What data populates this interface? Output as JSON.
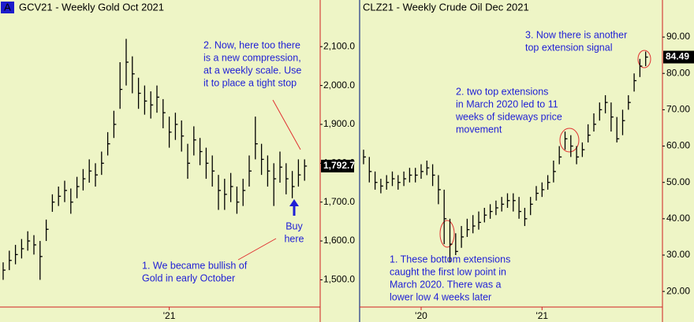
{
  "chart_data": [
    {
      "type": "ohlc",
      "badge": "A",
      "title": "GCV21 - Weekly  Gold Oct 2021",
      "high": [
        1545,
        1575,
        1590,
        1605,
        1625,
        1615,
        1600,
        1655,
        1720,
        1740,
        1755,
        1735,
        1765,
        1785,
        1810,
        1800,
        1830,
        1880,
        1935,
        2060,
        2120,
        2075,
        2020,
        2000,
        1985,
        2000,
        1965,
        1920,
        1930,
        1910,
        1850,
        1895,
        1865,
        1840,
        1820,
        1770,
        1760,
        1775,
        1740,
        1760,
        1820,
        1920,
        1850,
        1820,
        1800,
        1830,
        1800,
        1780,
        1810,
        1810
      ],
      "low": [
        1500,
        1525,
        1540,
        1555,
        1575,
        1565,
        1500,
        1600,
        1675,
        1690,
        1700,
        1670,
        1710,
        1730,
        1750,
        1740,
        1770,
        1820,
        1865,
        1940,
        2000,
        1980,
        1940,
        1925,
        1915,
        1930,
        1890,
        1840,
        1860,
        1830,
        1760,
        1820,
        1795,
        1760,
        1740,
        1680,
        1680,
        1700,
        1670,
        1690,
        1740,
        1810,
        1770,
        1740,
        1690,
        1750,
        1720,
        1710,
        1740,
        1755
      ],
      "close": [
        1525,
        1550,
        1565,
        1580,
        1600,
        1590,
        1560,
        1630,
        1700,
        1715,
        1730,
        1700,
        1740,
        1760,
        1780,
        1770,
        1800,
        1850,
        1900,
        1990,
        2060,
        2030,
        1980,
        1960,
        1950,
        1970,
        1930,
        1880,
        1900,
        1870,
        1800,
        1860,
        1830,
        1800,
        1780,
        1730,
        1720,
        1740,
        1700,
        1730,
        1780,
        1850,
        1810,
        1780,
        1760,
        1790,
        1760,
        1740,
        1770,
        1792.7
      ],
      "last_label": "1,792.7",
      "ylim": [
        1430,
        2220
      ],
      "yticks": [
        {
          "value": 1500,
          "label": "1,500.0"
        },
        {
          "value": 1600,
          "label": "1,600.0"
        },
        {
          "value": 1700,
          "label": "1,700.0"
        },
        {
          "value": 1800,
          "label": "1,800.0"
        },
        {
          "value": 1900,
          "label": "1,900.0"
        },
        {
          "value": 2000,
          "label": "2,000.0"
        },
        {
          "value": 2100,
          "label": "2,100.0"
        }
      ],
      "xticks": [
        {
          "value": 27,
          "label": "'21"
        }
      ],
      "color": "#000000",
      "annotations": [
        [
          "2. Now, here too there",
          "is a new compression,",
          "at a weekly scale. Use",
          "it to place a tight stop"
        ],
        [
          "Buy",
          "here"
        ],
        [
          "1. We became bullish of",
          "Gold in early October"
        ]
      ]
    },
    {
      "type": "ohlc",
      "title": "CLZ21 - Weekly  Crude Oil Dec 2021",
      "high": [
        59,
        57,
        53,
        51,
        52,
        53,
        52,
        53,
        54,
        54,
        55,
        56,
        55,
        52,
        48,
        40,
        36,
        38,
        40,
        41,
        42,
        43,
        44,
        45,
        46,
        47,
        47,
        46,
        43,
        46,
        49,
        50,
        52,
        56,
        60,
        64,
        63,
        60,
        61,
        66,
        69,
        72,
        74,
        72,
        68,
        70,
        74,
        80,
        84,
        86
      ],
      "low": [
        55,
        50,
        48,
        47,
        48,
        49,
        48,
        49,
        50,
        50,
        51,
        52,
        49,
        44,
        33,
        28,
        30,
        32,
        35,
        36,
        37,
        39,
        40,
        41,
        42,
        43,
        42,
        40,
        38,
        41,
        45,
        46,
        48,
        50,
        55,
        59,
        57,
        55,
        57,
        61,
        64,
        67,
        69,
        64,
        61,
        63,
        70,
        75,
        79,
        82
      ],
      "close": [
        57,
        53,
        50,
        49,
        50,
        51,
        50,
        51,
        52,
        52,
        53,
        54,
        52,
        48,
        40,
        33,
        31,
        35,
        37,
        38,
        39,
        41,
        42,
        43,
        44,
        45,
        45,
        42,
        40,
        44,
        47,
        48,
        50,
        53,
        57,
        62,
        60,
        57,
        59,
        63,
        66,
        70,
        72,
        68,
        62,
        67,
        72,
        78,
        82,
        84.49
      ],
      "last_label": "84.49",
      "ylim": [
        15.7,
        100.2
      ],
      "yticks": [
        {
          "value": 20,
          "label": "20.00"
        },
        {
          "value": 30,
          "label": "30.00"
        },
        {
          "value": 40,
          "label": "40.00"
        },
        {
          "value": 50,
          "label": "50.00"
        },
        {
          "value": 60,
          "label": "60.00"
        },
        {
          "value": 70,
          "label": "70.00"
        },
        {
          "value": 80,
          "label": "80.00"
        },
        {
          "value": 90,
          "label": "90.00"
        }
      ],
      "xticks": [
        {
          "value": 10,
          "label": "'20"
        },
        {
          "value": 31,
          "label": "'21"
        }
      ],
      "color": "#000000",
      "annotations": [
        [
          "1. These bottom extensions",
          "caught the first low point in",
          "March 2020. There was a",
          "lower low 4 weeks later"
        ],
        [
          "2. two top extensions",
          "in March 2020 led to 11",
          "weeks of sideways price",
          "movement"
        ],
        [
          "3. Now there is another",
          "top extension signal"
        ]
      ]
    }
  ]
}
